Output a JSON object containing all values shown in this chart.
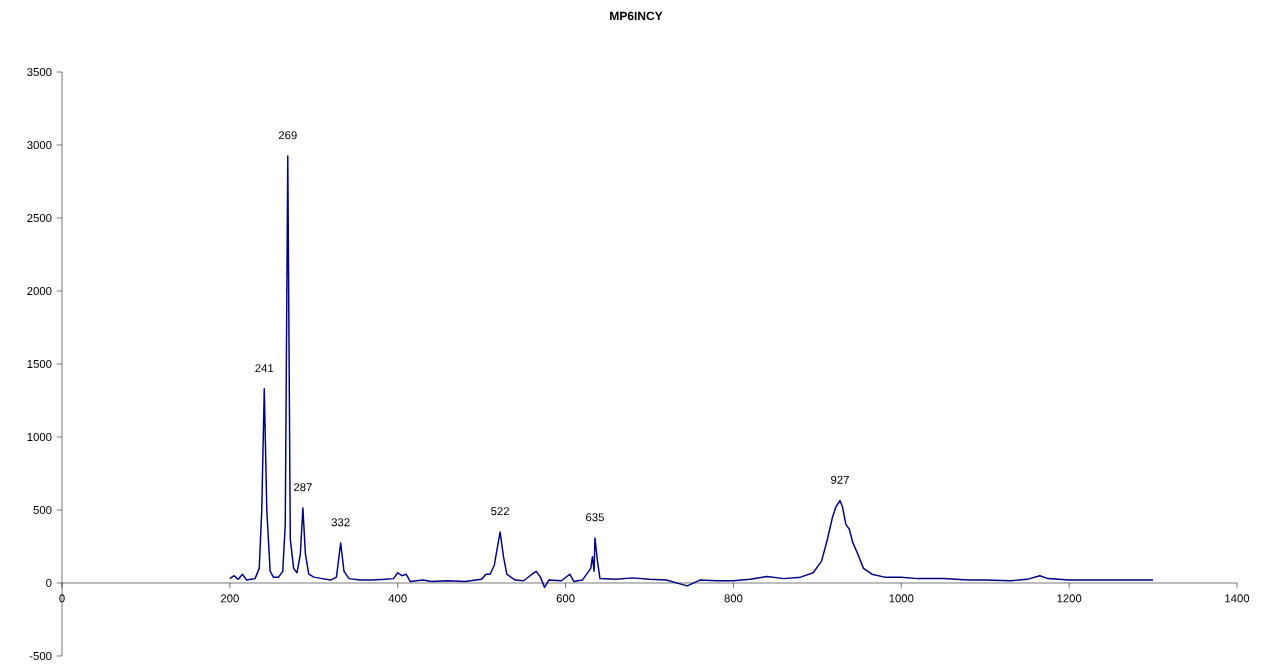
{
  "chart_data": {
    "type": "line",
    "title": "MP6INCY",
    "x": [
      200,
      205,
      210,
      215,
      220,
      225,
      230,
      235,
      238,
      241,
      244,
      248,
      252,
      258,
      263,
      266,
      269,
      272,
      276,
      280,
      284,
      287,
      290,
      294,
      300,
      310,
      320,
      327,
      332,
      336,
      342,
      355,
      370,
      385,
      395,
      400,
      405,
      410,
      415,
      430,
      440,
      460,
      480,
      500,
      505,
      510,
      515,
      519,
      522,
      526,
      530,
      540,
      550,
      560,
      565,
      570,
      575,
      580,
      595,
      605,
      610,
      620,
      630,
      632,
      634,
      635,
      638,
      641,
      660,
      680,
      700,
      720,
      745,
      760,
      780,
      800,
      820,
      840,
      860,
      880,
      895,
      905,
      912,
      918,
      922,
      927,
      930,
      934,
      938,
      942,
      948,
      955,
      965,
      980,
      1000,
      1020,
      1050,
      1080,
      1100,
      1130,
      1150,
      1165,
      1175,
      1200,
      1230,
      1260,
      1280,
      1300
    ],
    "series": [
      {
        "color": "#000080",
        "values": [
          30,
          50,
          25,
          60,
          20,
          25,
          30,
          100,
          500,
          1330,
          500,
          80,
          40,
          40,
          80,
          400,
          2925,
          300,
          100,
          70,
          200,
          514,
          200,
          60,
          40,
          30,
          20,
          40,
          274,
          80,
          30,
          20,
          20,
          25,
          30,
          70,
          50,
          60,
          10,
          20,
          10,
          15,
          10,
          25,
          60,
          60,
          120,
          250,
          350,
          180,
          60,
          20,
          15,
          60,
          80,
          40,
          -30,
          20,
          15,
          60,
          10,
          20,
          100,
          180,
          80,
          308,
          150,
          30,
          25,
          35,
          25,
          20,
          -20,
          20,
          15,
          15,
          25,
          45,
          30,
          40,
          70,
          150,
          300,
          450,
          520,
          565,
          520,
          400,
          370,
          280,
          200,
          100,
          60,
          40,
          40,
          30,
          30,
          20,
          20,
          15,
          25,
          50,
          30,
          20,
          20,
          20,
          20,
          20
        ]
      }
    ],
    "xlim": [
      0,
      1400
    ],
    "xticks": [
      0,
      200,
      400,
      600,
      800,
      1000,
      1200,
      1400
    ],
    "ylim": [
      -500,
      3500
    ],
    "yticks": [
      -500,
      0,
      500,
      1000,
      1500,
      2000,
      2500,
      3000,
      3500
    ],
    "grid": false,
    "marker": "none",
    "line_style": "solid",
    "annotations": [
      {
        "text": "241",
        "x": 241,
        "y": 1330
      },
      {
        "text": "269",
        "x": 269,
        "y": 2925
      },
      {
        "text": "287",
        "x": 287,
        "y": 514
      },
      {
        "text": "332",
        "x": 332,
        "y": 274
      },
      {
        "text": "522",
        "x": 522,
        "y": 350
      },
      {
        "text": "635",
        "x": 635,
        "y": 308
      },
      {
        "text": "927",
        "x": 927,
        "y": 565
      }
    ]
  }
}
